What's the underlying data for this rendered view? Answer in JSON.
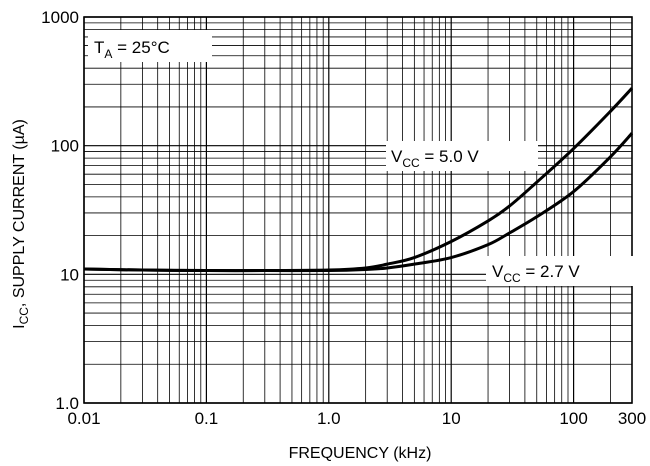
{
  "chart_data": {
    "type": "line",
    "xlabel": "FREQUENCY (kHz)",
    "ylabel": {
      "main": "I",
      "sub": "CC",
      "rest": ", SUPPLY CURRENT (µA)"
    },
    "x_scale": "log",
    "y_scale": "log",
    "xlim": [
      0.01,
      300
    ],
    "ylim": [
      1.0,
      1000
    ],
    "grid": true,
    "x_ticks": [
      {
        "value": 0.01,
        "label": "0.01"
      },
      {
        "value": 0.1,
        "label": "0.1"
      },
      {
        "value": 1,
        "label": "1.0"
      },
      {
        "value": 10,
        "label": "10"
      },
      {
        "value": 100,
        "label": "100"
      },
      {
        "value": 300,
        "label": "300"
      }
    ],
    "y_ticks": [
      {
        "value": 1,
        "label": "1.0"
      },
      {
        "value": 10,
        "label": "10"
      },
      {
        "value": 100,
        "label": "100"
      },
      {
        "value": 1000,
        "label": "1000"
      }
    ],
    "annotations": {
      "temp": {
        "main": "T",
        "sub": "A",
        "rest": " = 25°C"
      },
      "vcc5": {
        "main": "V",
        "sub": "CC",
        "rest": " = 5.0 V"
      },
      "vcc27": {
        "main": "V",
        "sub": "CC",
        "rest": " = 2.7 V"
      }
    },
    "series": [
      {
        "name": "VCC = 5.0 V",
        "x": [
          0.01,
          0.03,
          0.1,
          0.3,
          1,
          2,
          3,
          5,
          10,
          20,
          30,
          50,
          100,
          200,
          300
        ],
        "y": [
          11,
          10.8,
          10.7,
          10.7,
          10.8,
          11.2,
          12,
          13.5,
          18,
          26,
          34,
          52,
          95,
          185,
          280
        ]
      },
      {
        "name": "VCC = 2.7 V",
        "x": [
          0.01,
          0.03,
          0.1,
          0.3,
          1,
          2,
          3,
          5,
          10,
          20,
          30,
          50,
          100,
          200,
          300
        ],
        "y": [
          11,
          10.8,
          10.7,
          10.7,
          10.7,
          10.9,
          11.2,
          12,
          13.5,
          17,
          21,
          28,
          44,
          82,
          125
        ]
      }
    ]
  }
}
